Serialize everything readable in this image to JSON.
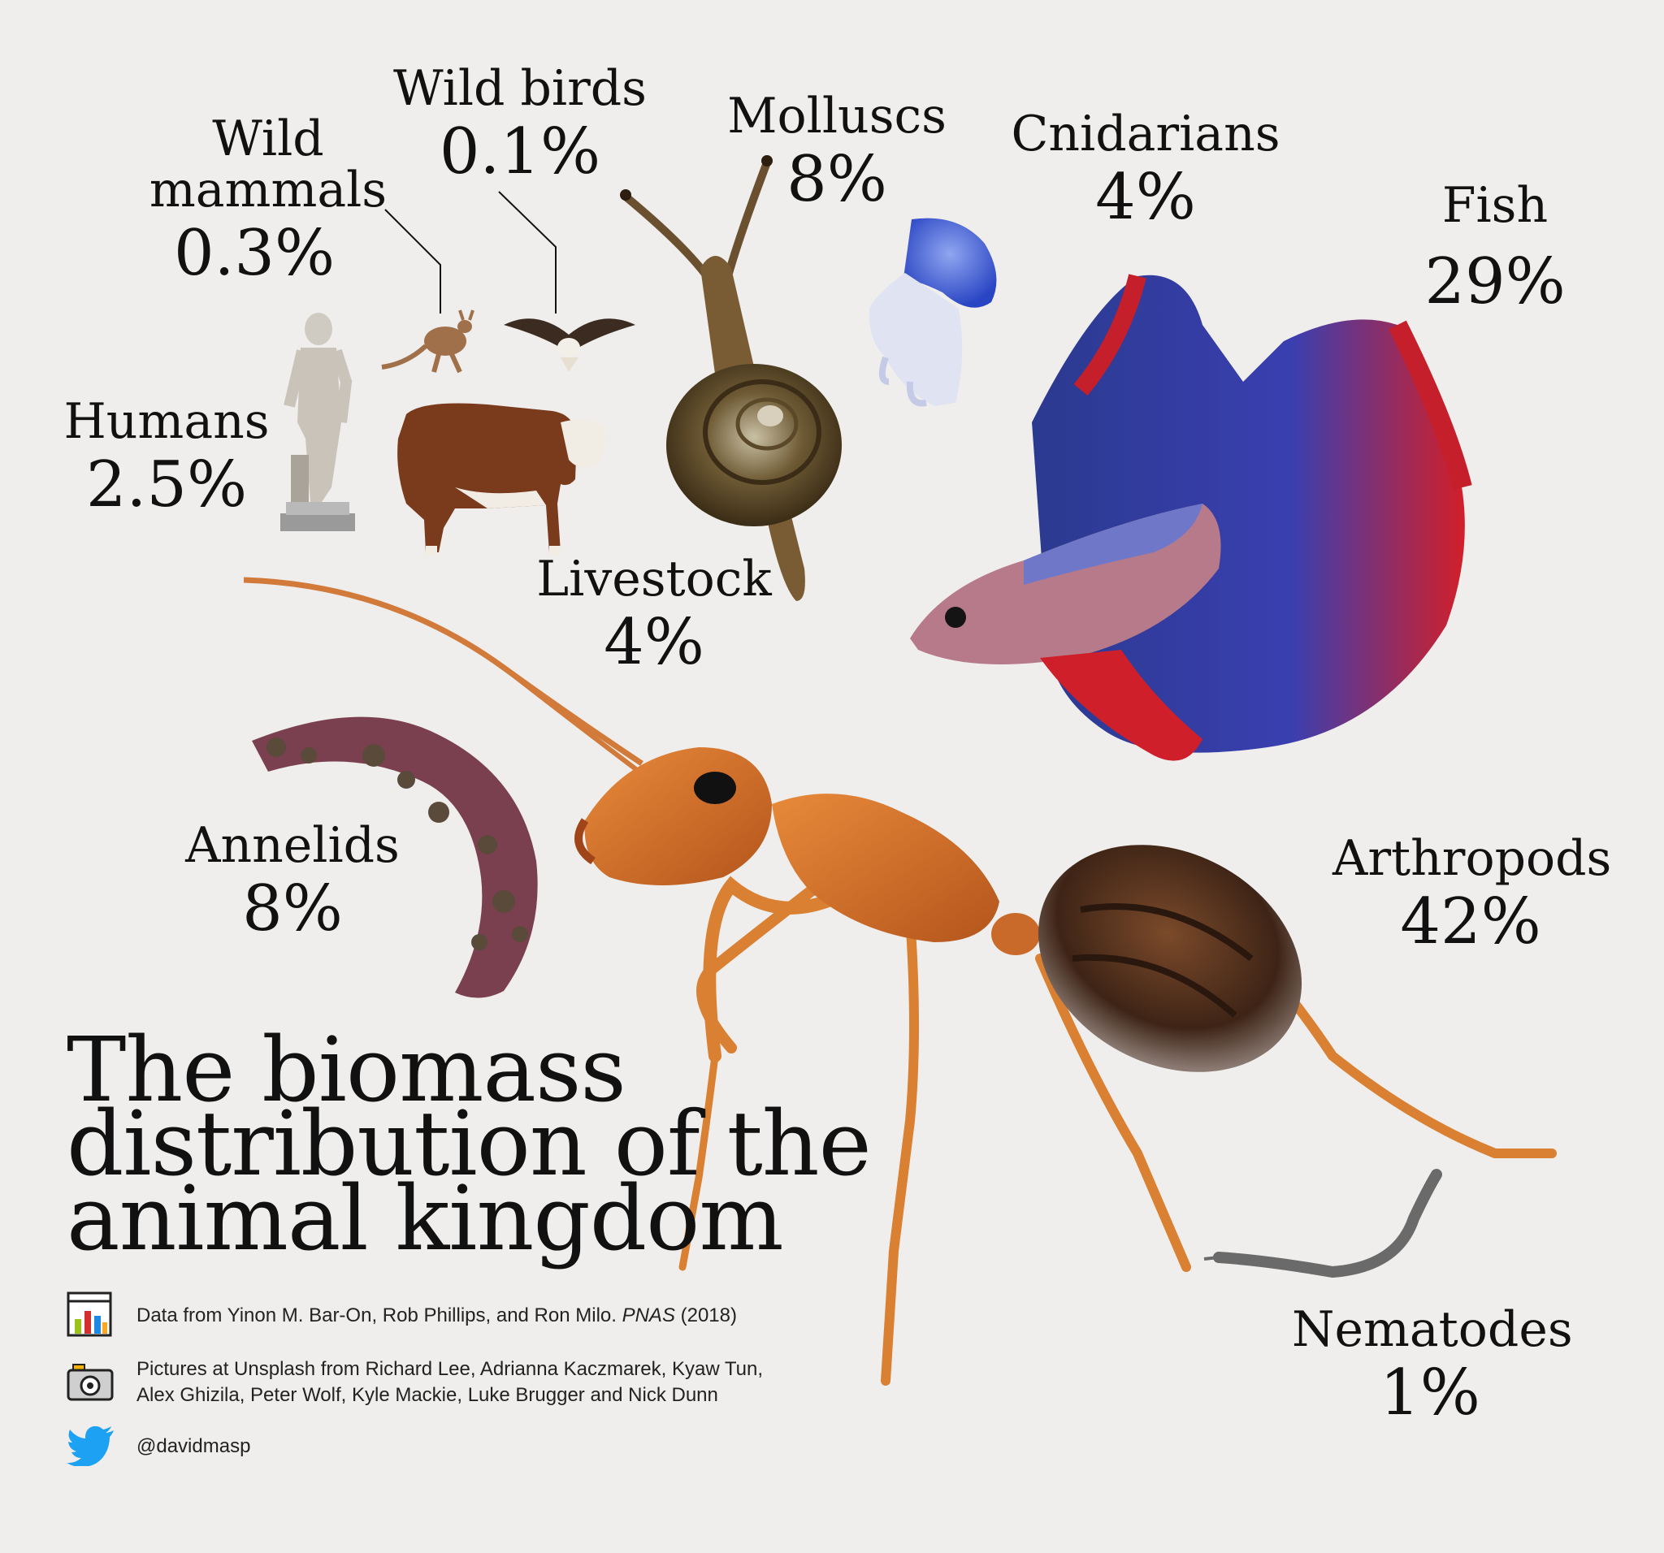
{
  "title": {
    "line1": "The biomass",
    "line2": "distribution of the",
    "line3": "animal kingdom"
  },
  "groups": {
    "wild_mammals": {
      "name_line1": "Wild",
      "name_line2": "mammals",
      "pct": "0.3%"
    },
    "wild_birds": {
      "name": "Wild birds",
      "pct": "0.1%"
    },
    "molluscs": {
      "name": "Molluscs",
      "pct": "8%"
    },
    "cnidarians": {
      "name": "Cnidarians",
      "pct": "4%"
    },
    "fish": {
      "name": "Fish",
      "pct": "29%"
    },
    "humans": {
      "name": "Humans",
      "pct": "2.5%"
    },
    "livestock": {
      "name": "Livestock",
      "pct": "4%"
    },
    "annelids": {
      "name": "Annelids",
      "pct": "8%"
    },
    "arthropods": {
      "name": "Arthropods",
      "pct": "42%"
    },
    "nematodes": {
      "name": "Nematodes",
      "pct": "1%"
    }
  },
  "credits": {
    "data_prefix": "Data from Yinon M. Bar-On, Rob Phillips, and Ron Milo. ",
    "data_journal": "PNAS",
    "data_year": " (2018)",
    "pictures_line1": "Pictures at Unsplash from Richard Lee, Adrianna Kaczmarek, Kyaw Tun,",
    "pictures_line2": "Alex Ghizila, Peter Wolf, Kyle Mackie, Luke Brugger and Nick Dunn",
    "twitter_handle": "@davidmasp"
  },
  "icons": {
    "data": "bar-chart-icon",
    "pictures": "camera-icon",
    "twitter": "twitter-bird-icon"
  },
  "colors": {
    "background": "#efeeec",
    "text": "#111111",
    "twitter_blue": "#1da1f2"
  }
}
